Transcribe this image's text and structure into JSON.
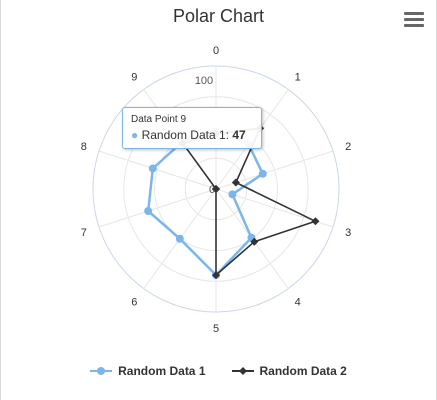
{
  "chart_data": {
    "type": "polar-line",
    "title": "Polar Chart",
    "categories": [
      "0",
      "1",
      "2",
      "3",
      "4",
      "5",
      "6",
      "7",
      "8",
      "9"
    ],
    "radial_ticks": [
      0,
      100
    ],
    "radial_max": 100,
    "series": [
      {
        "name": "Random Data 1",
        "color": "#7cb5ec",
        "marker": "circle",
        "values": [
          47,
          45,
          40,
          14,
          49,
          70,
          50,
          58,
          54,
          47
        ]
      },
      {
        "name": "Random Data 2",
        "color": "#333333",
        "marker": "diamond",
        "values": [
          45,
          61,
          17,
          85,
          53,
          70,
          0,
          0,
          0,
          46
        ]
      }
    ],
    "tooltip": {
      "title": "Data Point 9",
      "series": "Random Data 1",
      "value": "47"
    }
  }
}
